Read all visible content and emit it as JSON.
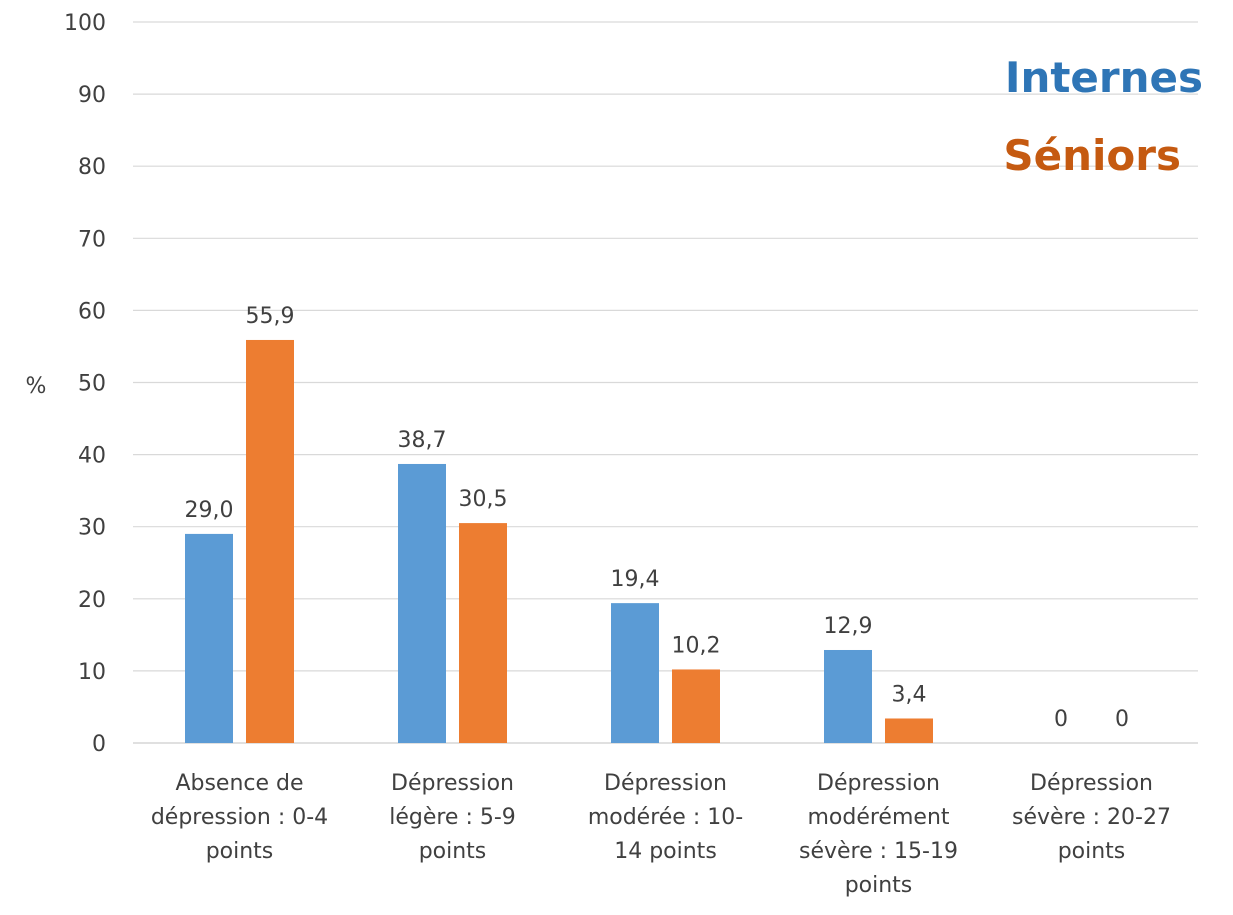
{
  "chart_data": {
    "type": "bar",
    "categories": [
      [
        "Absence de",
        "dépression : 0-4",
        "points"
      ],
      [
        "Dépression",
        "légère : 5-9",
        "points"
      ],
      [
        "Dépression",
        "modérée : 10-",
        "14 points"
      ],
      [
        "Dépression",
        "modérément",
        "sévère : 15-19",
        "points"
      ],
      [
        "Dépression",
        "sévère : 20-27",
        "points"
      ]
    ],
    "series": [
      {
        "name": "Internes",
        "color": "#5B9BD5",
        "values": [
          29.0,
          38.7,
          19.4,
          12.9,
          0
        ],
        "labels": [
          "29,0",
          "38,7",
          "19,4",
          "12,9",
          "0"
        ]
      },
      {
        "name": "Séniors",
        "color": "#ED7D31",
        "values": [
          55.9,
          30.5,
          10.2,
          3.4,
          0
        ],
        "labels": [
          "55,9",
          "30,5",
          "10,2",
          "3,4",
          "0"
        ]
      }
    ],
    "ylabel": "%",
    "ylim": [
      0,
      100
    ],
    "yticks": [
      "0",
      "10",
      "20",
      "30",
      "40",
      "50",
      "60",
      "70",
      "80",
      "90",
      "100"
    ],
    "grid": true,
    "legend": {
      "placement": "top-right",
      "items": [
        {
          "text": "Internes",
          "color": "#2E75B6"
        },
        {
          "text": "Séniors",
          "color": "#C55A11"
        }
      ]
    }
  }
}
